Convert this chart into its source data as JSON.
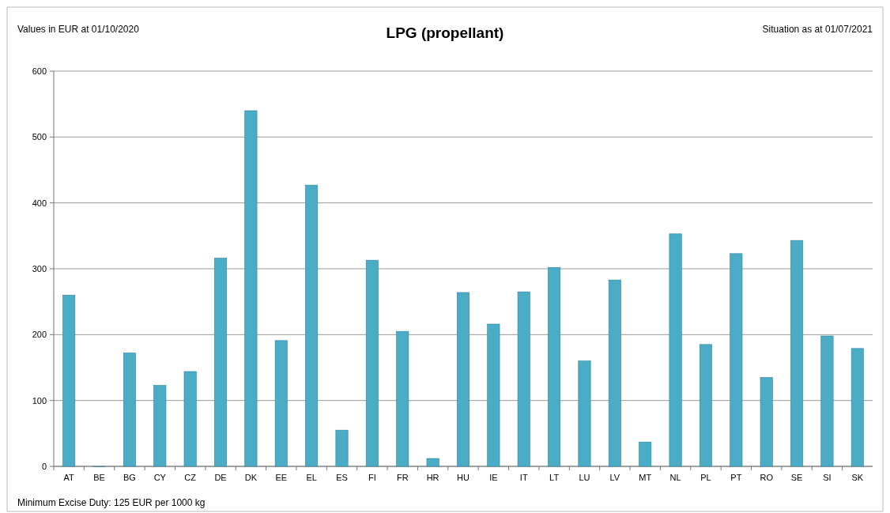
{
  "chart_data": {
    "type": "bar",
    "title": "LPG (propellant)",
    "annotations": [
      "Values in EUR at 01/10/2020",
      "Situation as at 01/07/2021",
      "Minimum Excise Duty: 125 EUR per 1000 kg"
    ],
    "categories": [
      "AT",
      "BE",
      "BG",
      "CY",
      "CZ",
      "DE",
      "DK",
      "EE",
      "EL",
      "ES",
      "FI",
      "FR",
      "HR",
      "HU",
      "IE",
      "IT",
      "LT",
      "LU",
      "LV",
      "MT",
      "NL",
      "PL",
      "PT",
      "RO",
      "SE",
      "SI",
      "SK"
    ],
    "values": [
      260,
      0,
      172,
      123,
      144,
      316,
      540,
      191,
      427,
      55,
      313,
      205,
      12,
      264,
      216,
      265,
      302,
      160,
      283,
      37,
      353,
      185,
      323,
      135,
      343,
      198,
      179
    ],
    "color": "#4bacc6",
    "ylim": [
      0,
      600
    ],
    "yticks": [
      0,
      100,
      200,
      300,
      400,
      500,
      600
    ],
    "grid": "y"
  }
}
